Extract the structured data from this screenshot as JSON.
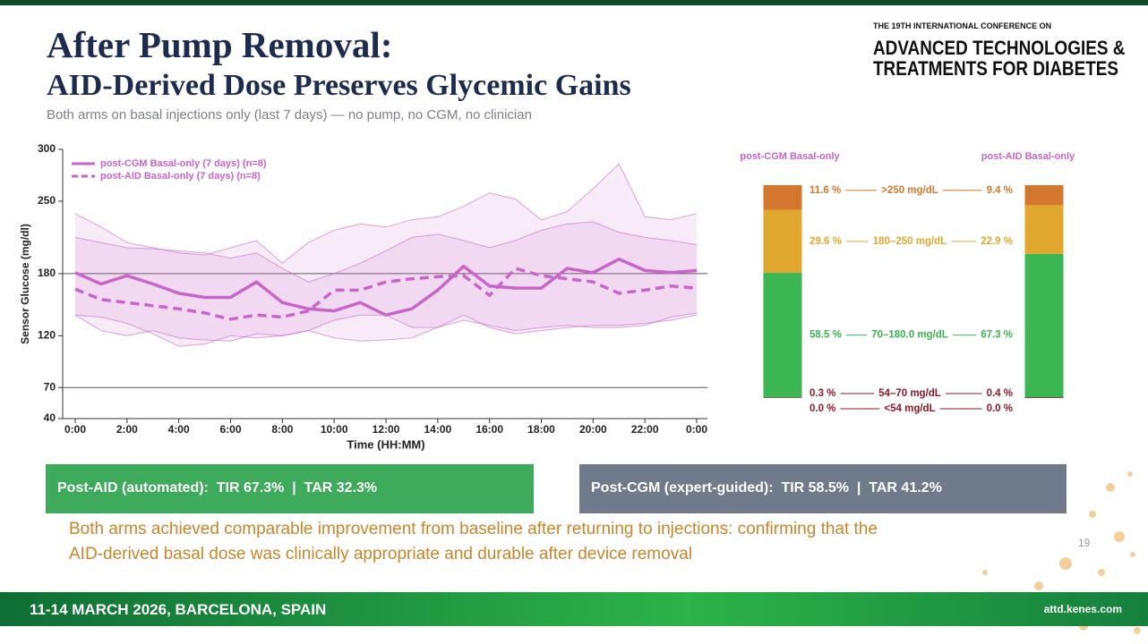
{
  "header": {
    "title": "After Pump Removal:",
    "title_line2": "AID-Derived Dose Preserves Glycemic Gains",
    "caption": "Both arms on basal injections only (last 7 days)  —  no pump, no CGM, no clinician",
    "conference_small": "THE 19TH INTERNATIONAL CONFERENCE ON",
    "conference_name": [
      "ADVANCED TECHNOLOGIES &",
      "TREATMENTS FOR DIABETES"
    ]
  },
  "chart_data": [
    {
      "type": "line",
      "y_label": "Sensor Glucose (mg/dl)",
      "x_label": "Time (HH:MM)",
      "x": [
        0,
        1,
        2,
        3,
        4,
        5,
        6,
        7,
        8,
        9,
        10,
        11,
        12,
        13,
        14,
        15,
        16,
        17,
        18,
        19,
        20,
        21,
        22,
        23,
        24
      ],
      "xlim": [
        0,
        24
      ],
      "xticks": [
        {
          "value": 0,
          "label": "0:00"
        },
        {
          "value": 2,
          "label": "2:00"
        },
        {
          "value": 4,
          "label": "4:00"
        },
        {
          "value": 6,
          "label": "6:00"
        },
        {
          "value": 8,
          "label": "8:00"
        },
        {
          "value": 10,
          "label": "10:00"
        },
        {
          "value": 12,
          "label": "12:00"
        },
        {
          "value": 14,
          "label": "14:00"
        },
        {
          "value": 16,
          "label": "16:00"
        },
        {
          "value": 18,
          "label": "18:00"
        },
        {
          "value": 20,
          "label": "20:00"
        },
        {
          "value": 22,
          "label": "22:00"
        },
        {
          "value": 24,
          "label": "0:00"
        }
      ],
      "ylim": [
        40,
        300
      ],
      "yticks": [
        40,
        70,
        120,
        180,
        250,
        300
      ],
      "ref_lines": [
        70,
        180
      ],
      "series": [
        {
          "name": "post-CGM Basal-only (7 days) (n=8)",
          "color": "#c765c9",
          "dashed": false,
          "values": [
            181,
            170,
            178,
            170,
            161,
            157,
            157,
            172,
            152,
            146,
            144,
            152,
            140,
            146,
            164,
            187,
            168,
            166,
            166,
            185,
            181,
            194,
            183,
            181,
            183
          ],
          "upper": [
            238,
            225,
            210,
            205,
            200,
            198,
            205,
            212,
            190,
            210,
            222,
            228,
            225,
            232,
            235,
            245,
            258,
            252,
            232,
            240,
            262,
            286,
            235,
            232,
            238
          ],
          "lower": [
            140,
            138,
            132,
            122,
            110,
            112,
            120,
            118,
            120,
            125,
            118,
            115,
            116,
            118,
            128,
            140,
            128,
            122,
            125,
            128,
            130,
            130,
            132,
            135,
            140
          ]
        },
        {
          "name": "post-AID Basal-only (7 days) (n=8)",
          "color": "#c765c9",
          "dashed": true,
          "values": [
            165,
            155,
            152,
            149,
            146,
            142,
            136,
            140,
            138,
            144,
            164,
            164,
            172,
            175,
            177,
            178,
            159,
            185,
            178,
            175,
            172,
            161,
            164,
            168,
            166
          ],
          "upper": [
            215,
            210,
            205,
            204,
            202,
            200,
            195,
            200,
            185,
            172,
            180,
            190,
            202,
            215,
            218,
            212,
            205,
            212,
            222,
            228,
            230,
            220,
            215,
            212,
            208
          ],
          "lower": [
            140,
            125,
            120,
            125,
            118,
            116,
            115,
            122,
            120,
            125,
            135,
            140,
            140,
            128,
            128,
            135,
            130,
            125,
            128,
            130,
            128,
            128,
            130,
            138,
            142
          ]
        }
      ]
    },
    {
      "type": "stacked_bar",
      "categories": [
        "post-CGM Basal-only",
        "post-AID Basal-only"
      ],
      "series": [
        {
          "name": "<54 mg/dL",
          "color": "#8b1a2b",
          "values": [
            0.0,
            0.0
          ],
          "value_labels": [
            "0.0 %",
            "0.0 %"
          ]
        },
        {
          "name": "54–70 mg/dL",
          "color": "#9e2438",
          "values": [
            0.3,
            0.4
          ],
          "value_labels": [
            "0.3 %",
            "0.4 %"
          ]
        },
        {
          "name": "70–180.0 mg/dL",
          "color": "#3cb553",
          "values": [
            58.5,
            67.3
          ],
          "value_labels": [
            "58.5 %",
            "67.3 %"
          ]
        },
        {
          "name": "180–250 mg/dL",
          "color": "#e0a82e",
          "values": [
            29.6,
            22.9
          ],
          "value_labels": [
            "29.6 %",
            "22.9 %"
          ]
        },
        {
          "name": ">250 mg/dL",
          "color": "#d4782f",
          "values": [
            11.6,
            9.4
          ],
          "value_labels": [
            "11.6 %",
            "9.4 %"
          ]
        }
      ]
    }
  ],
  "summary": {
    "aid": "Post-AID (automated):  TIR 67.3%  |  TAR 32.3%",
    "cgm": "Post-CGM (expert-guided):  TIR 58.5%  |  TAR 41.2%"
  },
  "note": [
    "Both arms achieved comparable improvement from baseline after returning to injections: confirming that the",
    "AID-derived basal dose was clinically appropriate and durable after device removal"
  ],
  "page_number": "19",
  "footer": {
    "dates": "11-14 MARCH 2026, BARCELONA, SPAIN",
    "url": "attd.kenes.com"
  }
}
